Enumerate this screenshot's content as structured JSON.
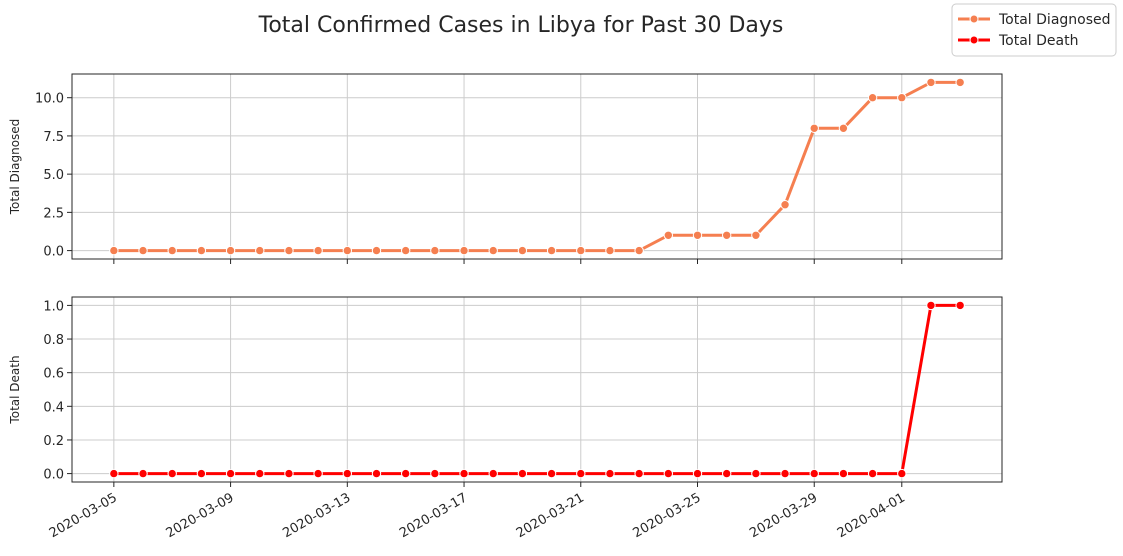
{
  "chart_data": {
    "type": "line",
    "title": "Total Confirmed Cases in Libya for Past 30 Days",
    "x": [
      "2020-03-05",
      "2020-03-06",
      "2020-03-07",
      "2020-03-08",
      "2020-03-09",
      "2020-03-10",
      "2020-03-11",
      "2020-03-12",
      "2020-03-13",
      "2020-03-14",
      "2020-03-15",
      "2020-03-16",
      "2020-03-17",
      "2020-03-18",
      "2020-03-19",
      "2020-03-20",
      "2020-03-21",
      "2020-03-22",
      "2020-03-23",
      "2020-03-24",
      "2020-03-25",
      "2020-03-26",
      "2020-03-27",
      "2020-03-28",
      "2020-03-29",
      "2020-03-30",
      "2020-03-31",
      "2020-04-01",
      "2020-04-02",
      "2020-04-03"
    ],
    "x_ticks": [
      "2020-03-05",
      "2020-03-09",
      "2020-03-13",
      "2020-03-17",
      "2020-03-21",
      "2020-03-25",
      "2020-03-29",
      "2020-04-01"
    ],
    "grid": true,
    "legend": {
      "position": "top-right",
      "entries": [
        {
          "name": "Total Diagnosed",
          "color": "#f57f50"
        },
        {
          "name": "Total Death",
          "color": "#ff0000"
        }
      ]
    },
    "panels": [
      {
        "name": "Total Diagnosed",
        "ylabel": "Total Diagnosed",
        "color": "#f57f50",
        "ylim": [
          -0.55,
          11.55
        ],
        "yticks": [
          0.0,
          2.5,
          5.0,
          7.5,
          10.0
        ],
        "ytick_labels": [
          "0.0",
          "2.5",
          "5.0",
          "7.5",
          "10.0"
        ],
        "values": [
          0,
          0,
          0,
          0,
          0,
          0,
          0,
          0,
          0,
          0,
          0,
          0,
          0,
          0,
          0,
          0,
          0,
          0,
          0,
          1,
          1,
          1,
          1,
          3,
          8,
          8,
          10,
          10,
          11,
          11
        ]
      },
      {
        "name": "Total Death",
        "ylabel": "Total Death",
        "color": "#ff0000",
        "ylim": [
          -0.05,
          1.05
        ],
        "yticks": [
          0.0,
          0.2,
          0.4,
          0.6,
          0.8,
          1.0
        ],
        "ytick_labels": [
          "0.0",
          "0.2",
          "0.4",
          "0.6",
          "0.8",
          "1.0"
        ],
        "values": [
          0,
          0,
          0,
          0,
          0,
          0,
          0,
          0,
          0,
          0,
          0,
          0,
          0,
          0,
          0,
          0,
          0,
          0,
          0,
          0,
          0,
          0,
          0,
          0,
          0,
          0,
          0,
          0,
          1,
          1
        ]
      }
    ]
  }
}
